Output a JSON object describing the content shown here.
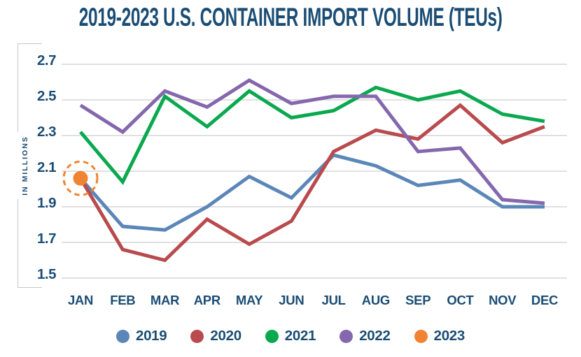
{
  "title": "2019-2023 U.S. CONTAINER IMPORT VOLUME (TEUs)",
  "y_axis_label": "IN MILLIONS",
  "colors": {
    "text": "#1b4d74",
    "gridline": "#d6d6d6",
    "bracket": "#c6c6c6",
    "background": "#ffffff",
    "series_2019": "#5b87b8",
    "series_2020": "#b94a4d",
    "series_2021": "#0aa84f",
    "series_2022": "#8567ad",
    "series_2023": "#f08432"
  },
  "chart_data": {
    "type": "line",
    "title": "2019-2023 U.S. CONTAINER IMPORT VOLUME (TEUs)",
    "xlabel": "",
    "ylabel": "IN MILLIONS",
    "categories": [
      "JAN",
      "FEB",
      "MAR",
      "APR",
      "MAY",
      "JUN",
      "JUL",
      "AUG",
      "SEP",
      "OCT",
      "NOV",
      "DEC"
    ],
    "ylim": [
      1.5,
      2.7
    ],
    "ytick_step": 0.2,
    "ytick_labels": [
      "1.5",
      "1.7",
      "1.9",
      "2.1",
      "2.3",
      "2.5",
      "2.7"
    ],
    "grid": true,
    "legend_position": "bottom",
    "units": "millions of TEUs",
    "series": [
      {
        "name": "2019",
        "color": "#5b87b8",
        "values": [
          2.06,
          1.79,
          1.77,
          1.9,
          2.07,
          1.95,
          2.19,
          2.13,
          2.02,
          2.05,
          1.9,
          1.9
        ]
      },
      {
        "name": "2020",
        "color": "#b94a4d",
        "values": [
          2.06,
          1.66,
          1.6,
          1.83,
          1.69,
          1.82,
          2.21,
          2.33,
          2.28,
          2.47,
          2.26,
          2.35
        ]
      },
      {
        "name": "2021",
        "color": "#0aa84f",
        "values": [
          2.32,
          2.04,
          2.52,
          2.35,
          2.55,
          2.4,
          2.44,
          2.57,
          2.5,
          2.55,
          2.42,
          2.38
        ]
      },
      {
        "name": "2022",
        "color": "#8567ad",
        "values": [
          2.47,
          2.32,
          2.55,
          2.46,
          2.61,
          2.48,
          2.52,
          2.52,
          2.21,
          2.23,
          1.94,
          1.92
        ]
      },
      {
        "name": "2023",
        "color": "#f08432",
        "values": [
          2.06
        ],
        "marker": "highlighted-dot-with-dashed-ring"
      }
    ],
    "draw_order": [
      "2019",
      "2021",
      "2020",
      "2022",
      "2023"
    ]
  }
}
